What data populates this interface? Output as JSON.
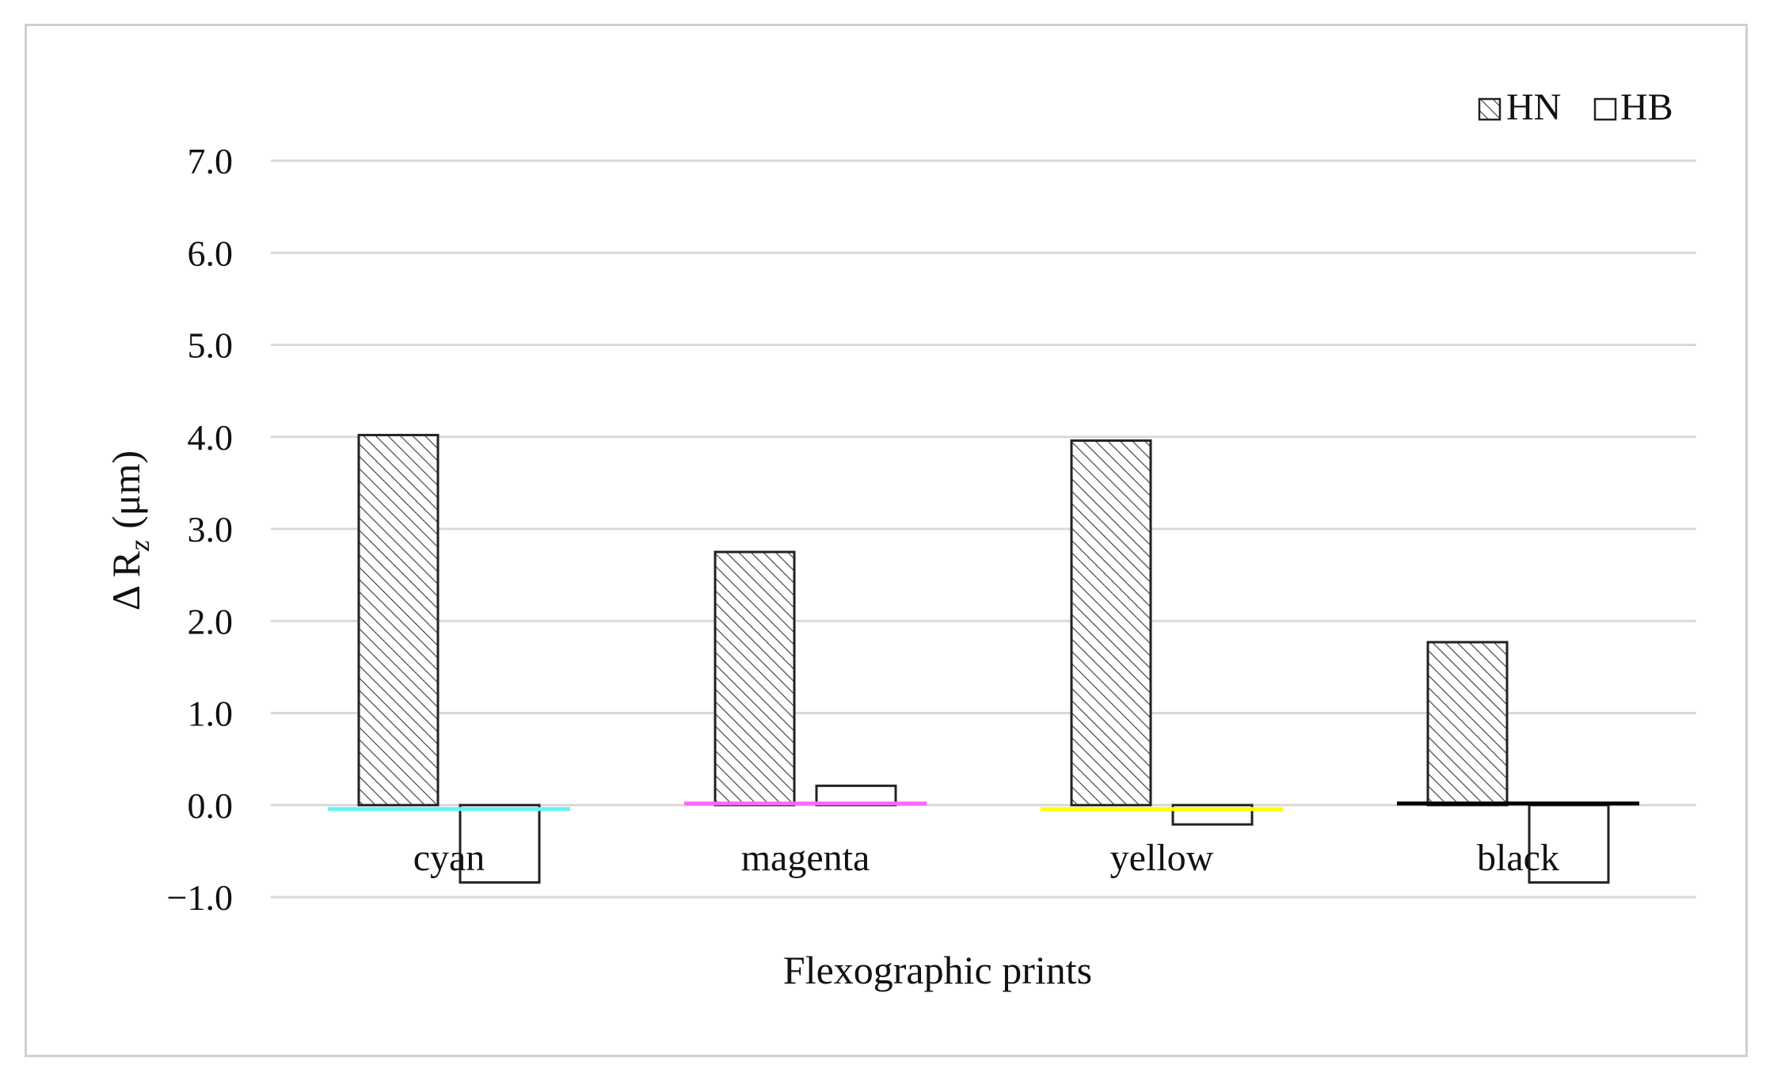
{
  "chart_data": {
    "type": "bar",
    "title": "",
    "xlabel": "Flexographic prints",
    "ylabel_main": "Δ R",
    "ylabel_sub": "z",
    "ylabel_unit": "(μm)",
    "categories": [
      "cyan",
      "magenta",
      "yellow",
      "black"
    ],
    "category_colors": [
      "#66f2f2",
      "#ff66ff",
      "#ffff00",
      "#000000"
    ],
    "ylim": [
      -1.0,
      7.0
    ],
    "yticks": [
      {
        "value": 7.0,
        "label": "7.0"
      },
      {
        "value": 6.0,
        "label": "6.0"
      },
      {
        "value": 5.0,
        "label": "5.0"
      },
      {
        "value": 4.0,
        "label": "4.0"
      },
      {
        "value": 3.0,
        "label": "3.0"
      },
      {
        "value": 2.0,
        "label": "2.0"
      },
      {
        "value": 1.0,
        "label": "1.0"
      },
      {
        "value": 0.0,
        "label": "0.0"
      },
      {
        "value": -1.0,
        "label": "−1.0"
      }
    ],
    "grid": true,
    "legend_position": "top-right",
    "series": [
      {
        "name": "HN",
        "fill": "hatched",
        "values": [
          4.02,
          2.75,
          3.96,
          1.77
        ]
      },
      {
        "name": "HB",
        "fill": "white",
        "values": [
          -0.84,
          0.21,
          -0.21,
          -0.84
        ]
      }
    ]
  }
}
